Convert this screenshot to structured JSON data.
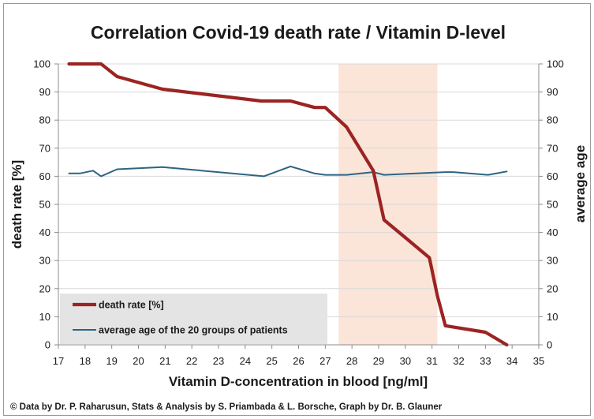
{
  "chart_data": {
    "type": "line",
    "title": "Correlation Covid-19 death rate / Vitamin D-level",
    "xlabel": "Vitamin D-concentration in blood [ng/ml]",
    "ylabel_left": "death rate [%]",
    "ylabel_right": "average age",
    "xlim": [
      17,
      35
    ],
    "ylim": [
      0,
      100
    ],
    "x_ticks": [
      17,
      18,
      19,
      20,
      21,
      22,
      23,
      24,
      25,
      26,
      27,
      28,
      29,
      30,
      31,
      32,
      33,
      34,
      35
    ],
    "y_ticks": [
      0,
      10,
      20,
      30,
      40,
      50,
      60,
      70,
      80,
      90,
      100
    ],
    "grid": "horizontal",
    "highlight_band": {
      "x": [
        27.5,
        31.2
      ],
      "color": "#fbe4d8"
    },
    "legend_position": "bottom-left",
    "credit": "© Data by Dr. P. Raharusun, Stats & Analysis by S. Priambada & L. Borsche, Graph by Dr. B. Glauner",
    "series": [
      {
        "name": "death rate [%]",
        "color": "#9b2423",
        "axis": "left",
        "points": [
          [
            17.4,
            100
          ],
          [
            18.6,
            100
          ],
          [
            19.2,
            95.5
          ],
          [
            20.9,
            91
          ],
          [
            24.6,
            86.8
          ],
          [
            25.7,
            86.8
          ],
          [
            26.6,
            84.5
          ],
          [
            27.0,
            84.5
          ],
          [
            27.8,
            77.5
          ],
          [
            28.8,
            62
          ],
          [
            29.2,
            44.5
          ],
          [
            30.9,
            31
          ],
          [
            31.2,
            17.5
          ],
          [
            31.5,
            6.8
          ],
          [
            31.7,
            6.5
          ],
          [
            33.0,
            4.5
          ],
          [
            33.8,
            0
          ]
        ]
      },
      {
        "name": "average age of the 20 groups of patients",
        "color": "#2e6482",
        "axis": "right",
        "points": [
          [
            17.4,
            61
          ],
          [
            17.8,
            61
          ],
          [
            18.3,
            62
          ],
          [
            18.6,
            60
          ],
          [
            19.2,
            62.5
          ],
          [
            20.9,
            63.3
          ],
          [
            24.7,
            60
          ],
          [
            25.7,
            63.5
          ],
          [
            26.6,
            61
          ],
          [
            27.0,
            60.5
          ],
          [
            27.8,
            60.5
          ],
          [
            28.8,
            61.5
          ],
          [
            29.2,
            60.5
          ],
          [
            31.5,
            61.5
          ],
          [
            31.8,
            61.5
          ],
          [
            33.1,
            60.5
          ],
          [
            33.8,
            61.7
          ]
        ]
      }
    ]
  }
}
